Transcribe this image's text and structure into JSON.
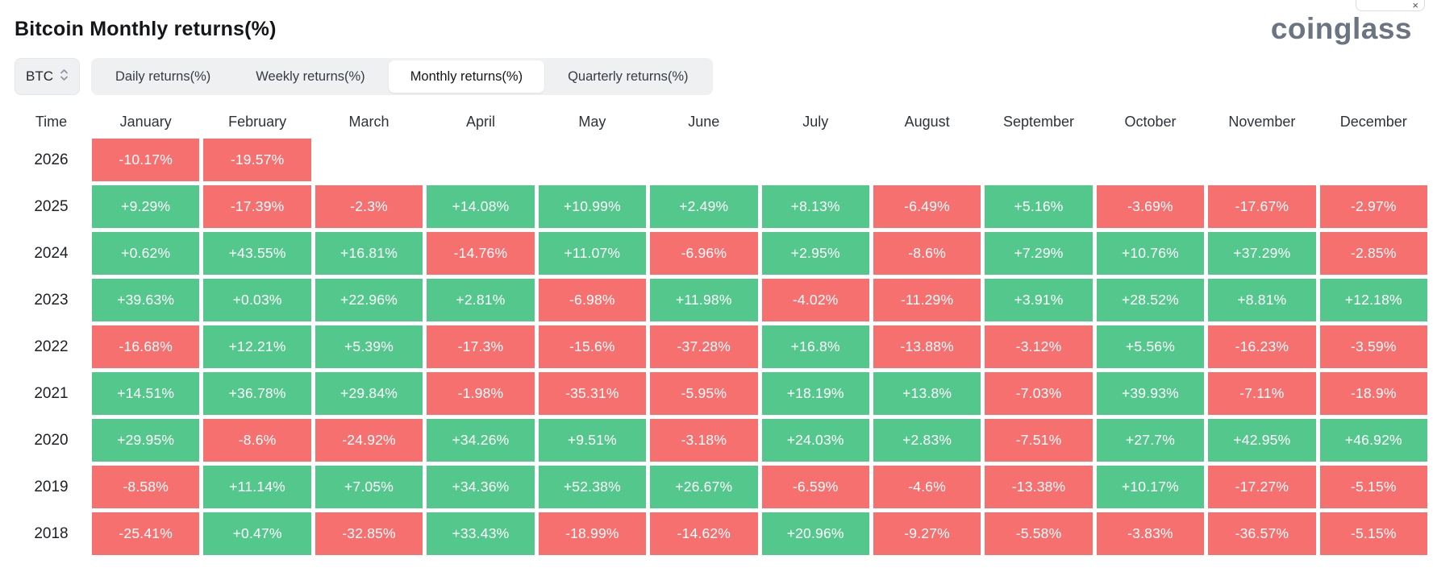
{
  "header": {
    "title": "Bitcoin Monthly returns(%)",
    "logo": "coinglass"
  },
  "ui": {
    "close_icon": "×"
  },
  "controls": {
    "symbol_select": {
      "label": "BTC",
      "icon": "updown-chevrons-icon"
    },
    "tabs": [
      {
        "label": "Daily returns(%)",
        "active": false
      },
      {
        "label": "Weekly returns(%)",
        "active": false
      },
      {
        "label": "Monthly returns(%)",
        "active": true
      },
      {
        "label": "Quarterly returns(%)",
        "active": false
      }
    ]
  },
  "chart_data": {
    "type": "heatmap",
    "title": "Bitcoin Monthly returns(%)",
    "time_header": "Time",
    "columns": [
      "January",
      "February",
      "March",
      "April",
      "May",
      "June",
      "July",
      "August",
      "September",
      "October",
      "November",
      "December"
    ],
    "positive_color": "#54c88c",
    "negative_color": "#f77070",
    "rows": [
      {
        "year": "2026",
        "values": [
          "-10.17%",
          "-19.57%",
          null,
          null,
          null,
          null,
          null,
          null,
          null,
          null,
          null,
          null
        ]
      },
      {
        "year": "2025",
        "values": [
          "+9.29%",
          "-17.39%",
          "-2.3%",
          "+14.08%",
          "+10.99%",
          "+2.49%",
          "+8.13%",
          "-6.49%",
          "+5.16%",
          "-3.69%",
          "-17.67%",
          "-2.97%"
        ]
      },
      {
        "year": "2024",
        "values": [
          "+0.62%",
          "+43.55%",
          "+16.81%",
          "-14.76%",
          "+11.07%",
          "-6.96%",
          "+2.95%",
          "-8.6%",
          "+7.29%",
          "+10.76%",
          "+37.29%",
          "-2.85%"
        ]
      },
      {
        "year": "2023",
        "values": [
          "+39.63%",
          "+0.03%",
          "+22.96%",
          "+2.81%",
          "-6.98%",
          "+11.98%",
          "-4.02%",
          "-11.29%",
          "+3.91%",
          "+28.52%",
          "+8.81%",
          "+12.18%"
        ]
      },
      {
        "year": "2022",
        "values": [
          "-16.68%",
          "+12.21%",
          "+5.39%",
          "-17.3%",
          "-15.6%",
          "-37.28%",
          "+16.8%",
          "-13.88%",
          "-3.12%",
          "+5.56%",
          "-16.23%",
          "-3.59%"
        ]
      },
      {
        "year": "2021",
        "values": [
          "+14.51%",
          "+36.78%",
          "+29.84%",
          "-1.98%",
          "-35.31%",
          "-5.95%",
          "+18.19%",
          "+13.8%",
          "-7.03%",
          "+39.93%",
          "-7.11%",
          "-18.9%"
        ]
      },
      {
        "year": "2020",
        "values": [
          "+29.95%",
          "-8.6%",
          "-24.92%",
          "+34.26%",
          "+9.51%",
          "-3.18%",
          "+24.03%",
          "+2.83%",
          "-7.51%",
          "+27.7%",
          "+42.95%",
          "+46.92%"
        ]
      },
      {
        "year": "2019",
        "values": [
          "-8.58%",
          "+11.14%",
          "+7.05%",
          "+34.36%",
          "+52.38%",
          "+26.67%",
          "-6.59%",
          "-4.6%",
          "-13.38%",
          "+10.17%",
          "-17.27%",
          "-5.15%"
        ]
      },
      {
        "year": "2018",
        "values": [
          "-25.41%",
          "+0.47%",
          "-32.85%",
          "+33.43%",
          "-18.99%",
          "-14.62%",
          "+20.96%",
          "-9.27%",
          "-5.58%",
          "-3.83%",
          "-36.57%",
          "-5.15%"
        ]
      }
    ]
  }
}
